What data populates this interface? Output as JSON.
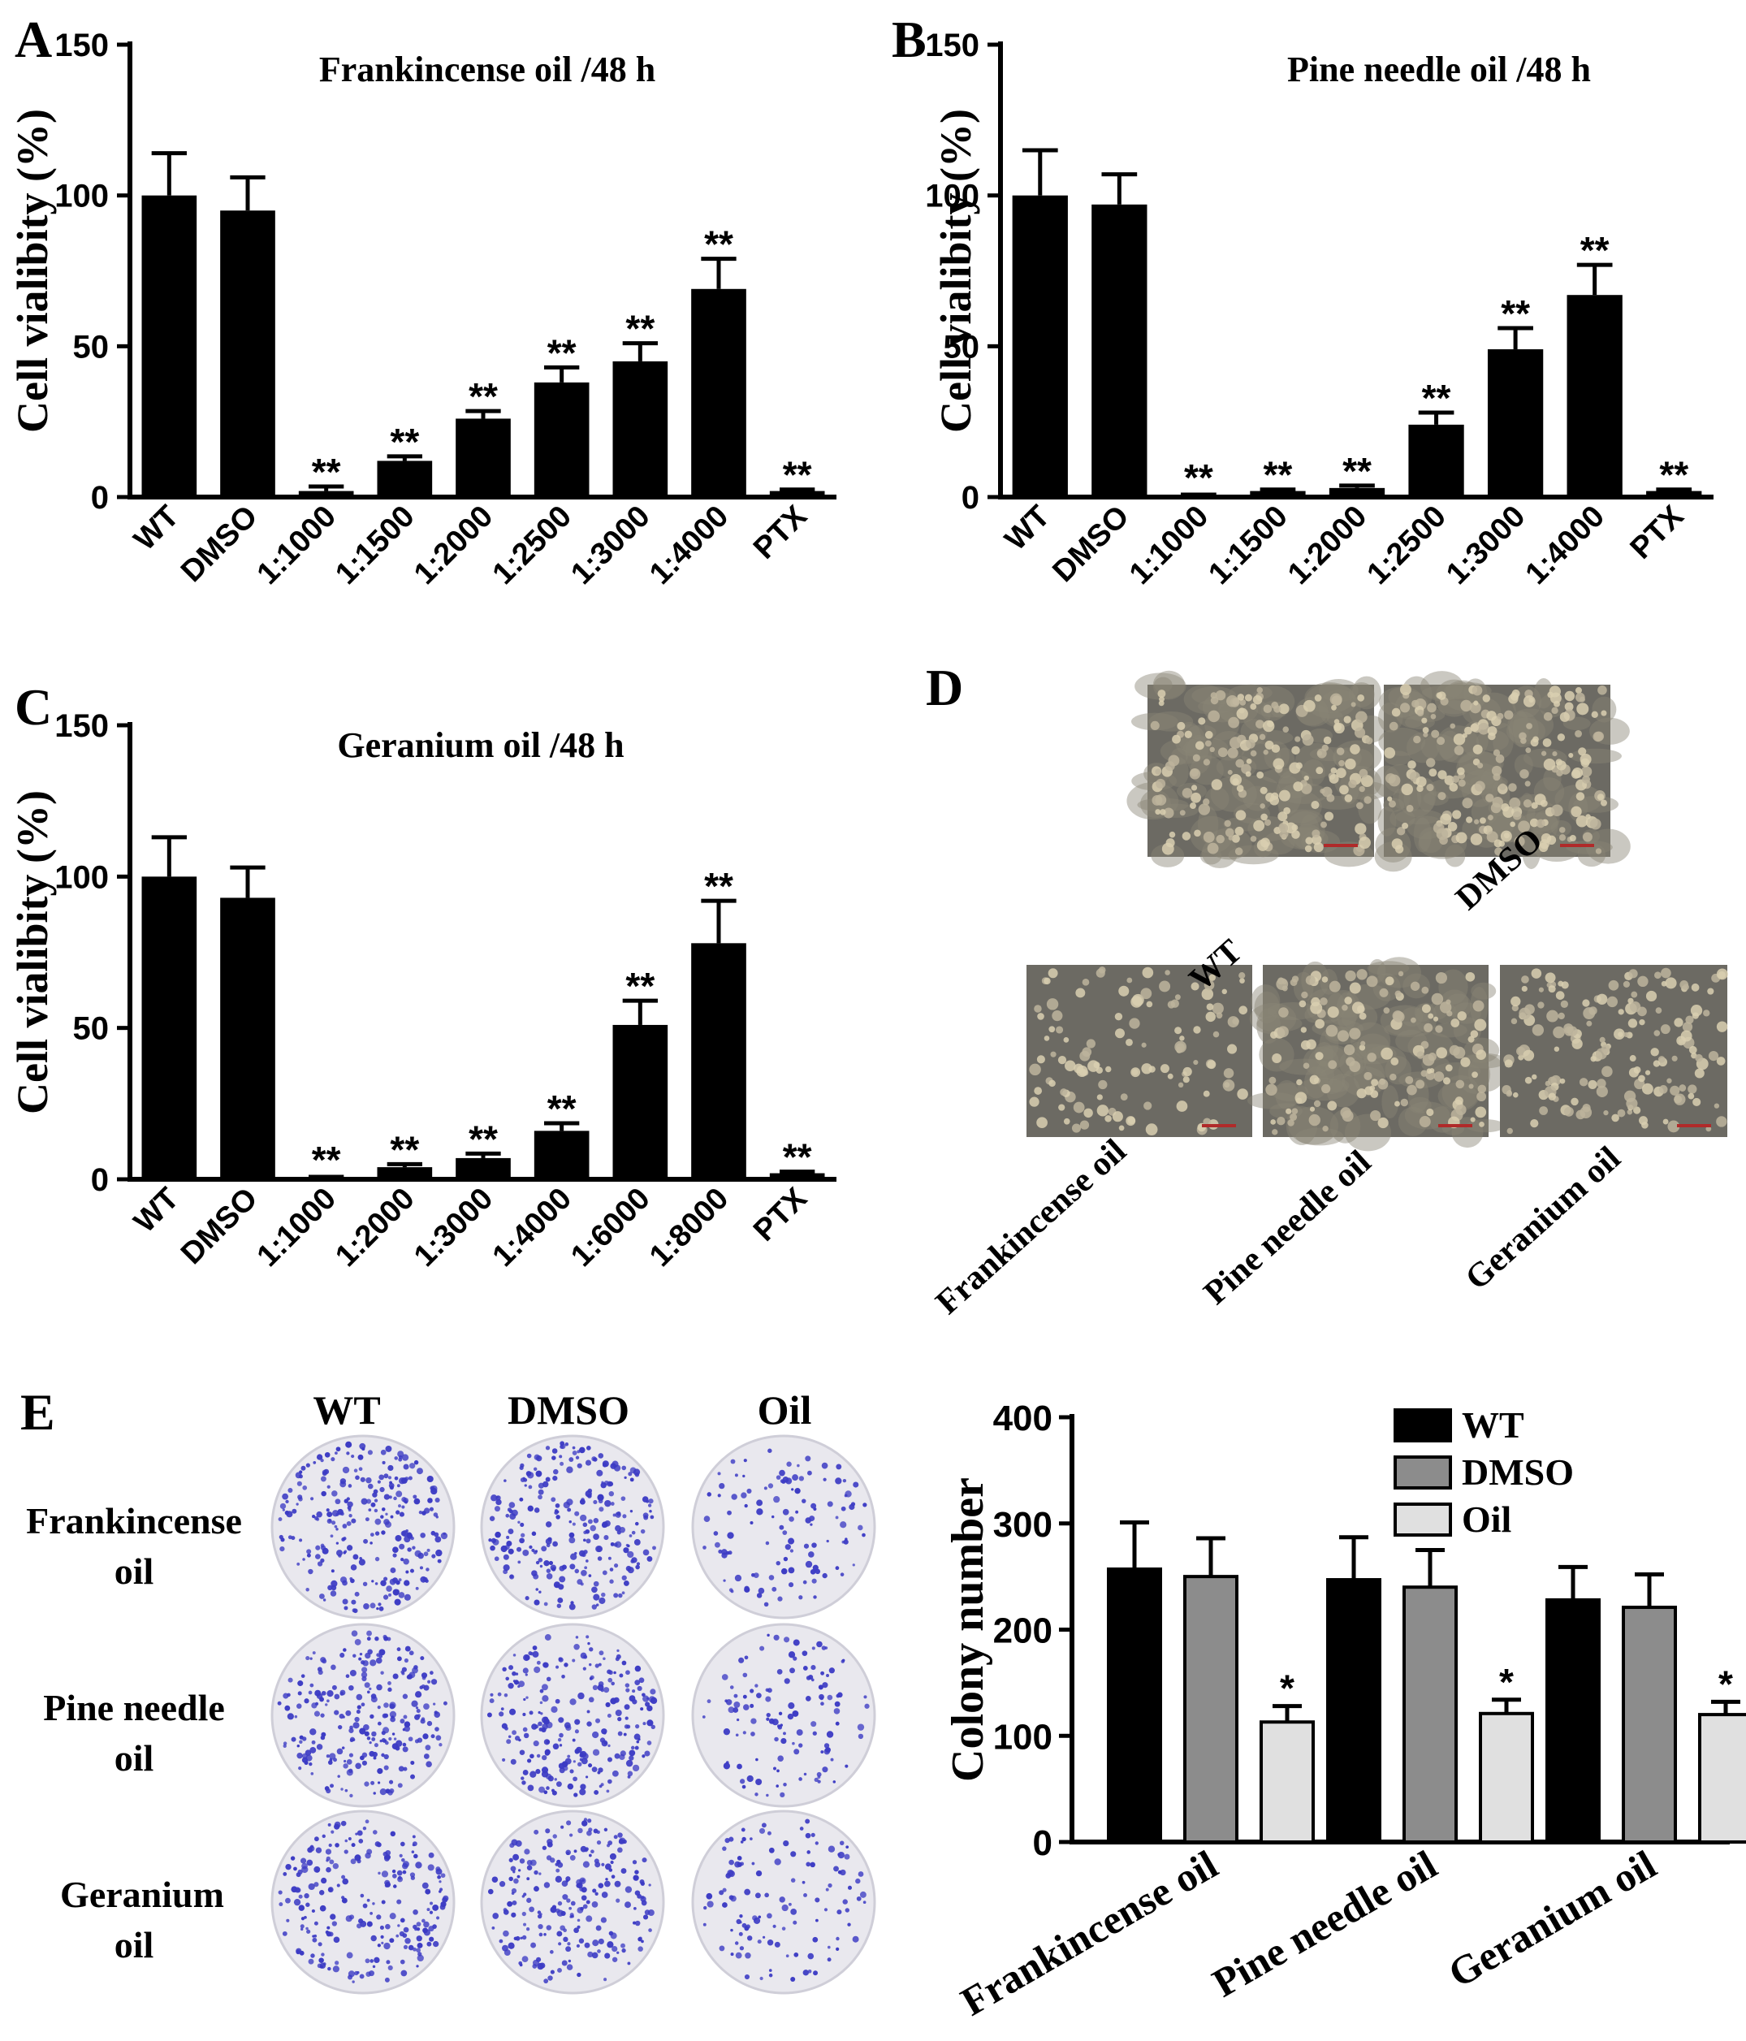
{
  "chart_data": [
    {
      "panel": "A",
      "type": "bar",
      "title": "Frankincense oil /48 h",
      "ylabel": "Cell vialibity (%)",
      "xlabel": "",
      "ylim": [
        0,
        150
      ],
      "yticks": [
        "0",
        "50",
        "100",
        "150"
      ],
      "grid": false,
      "categories": [
        "WT",
        "DMSO",
        "1:1000",
        "1:1500",
        "1:2000",
        "1:2500",
        "1:3000",
        "1:4000",
        "PTX"
      ],
      "values": [
        100,
        95,
        2,
        12,
        26,
        38,
        45,
        69,
        2
      ],
      "errors": [
        14,
        11,
        1.5,
        1.5,
        2.5,
        5,
        6,
        10,
        0.5
      ],
      "annotations": [
        "",
        "",
        "**",
        "**",
        "**",
        "**",
        "**",
        "**",
        "**"
      ],
      "bar_color": "#000000"
    },
    {
      "panel": "B",
      "type": "bar",
      "title": "Pine needle oil /48 h",
      "ylabel": "Cell vialibity (%)",
      "xlabel": "",
      "ylim": [
        0,
        150
      ],
      "yticks": [
        "0",
        "50",
        "100",
        "150"
      ],
      "grid": false,
      "categories": [
        "WT",
        "DMSO",
        "1:1000",
        "1:1500",
        "1:2000",
        "1:2500",
        "1:3000",
        "1:4000",
        "PTX"
      ],
      "values": [
        100,
        97,
        0.5,
        2,
        3,
        24,
        49,
        67,
        2
      ],
      "errors": [
        15,
        10,
        0.3,
        0.5,
        0.8,
        4,
        7,
        10,
        0.5
      ],
      "annotations": [
        "",
        "",
        "**",
        "**",
        "**",
        "**",
        "**",
        "**",
        "**"
      ],
      "bar_color": "#000000"
    },
    {
      "panel": "C",
      "type": "bar",
      "title": "Geranium oil /48 h",
      "ylabel": "Cell vialibity (%)",
      "xlabel": "",
      "ylim": [
        0,
        150
      ],
      "yticks": [
        "0",
        "50",
        "100",
        "150"
      ],
      "grid": false,
      "categories": [
        "WT",
        "DMSO",
        "1:1000",
        "1:2000",
        "1:3000",
        "1:4000",
        "1:6000",
        "1:8000",
        "PTX"
      ],
      "values": [
        100,
        93,
        0.5,
        4,
        7,
        16,
        51,
        78,
        2
      ],
      "errors": [
        13,
        10,
        0.3,
        1,
        1.5,
        2.5,
        8,
        14,
        0.5
      ],
      "annotations": [
        "",
        "",
        "**",
        "**",
        "**",
        "**",
        "**",
        "**",
        "**"
      ],
      "bar_color": "#000000"
    },
    {
      "panel": "E",
      "type": "bar",
      "title": "",
      "ylabel": "Colony number",
      "xlabel": "",
      "ylim": [
        0,
        400
      ],
      "yticks": [
        "0",
        "100",
        "200",
        "300",
        "400"
      ],
      "grid": false,
      "legend_position": "top-right",
      "categories": [
        "Frankincense oil",
        "Pine needle oil",
        "Geranium oil"
      ],
      "series": [
        {
          "name": "WT",
          "values": [
            257,
            247,
            228
          ],
          "errors": [
            44,
            40,
            31
          ],
          "color": "#000000"
        },
        {
          "name": "DMSO",
          "values": [
            250,
            240,
            221
          ],
          "errors": [
            36,
            35,
            31
          ],
          "color": "#8c8c8c"
        },
        {
          "name": "Oil",
          "values": [
            113,
            121,
            120
          ],
          "errors": [
            15,
            13,
            12
          ],
          "color": "#e0e0e0"
        }
      ],
      "annotations": {
        "Oil": [
          "*",
          "*",
          "*"
        ]
      }
    }
  ],
  "panel_labels": {
    "a": "A",
    "b": "B",
    "c": "C",
    "d": "D",
    "e": "E"
  },
  "panel_d": {
    "top_images": [
      "WT",
      "DMSO"
    ],
    "bottom_images": [
      "Frankincense oil",
      "Pine needle oil",
      "Geranium oil"
    ]
  },
  "panel_e_plates": {
    "columns": [
      "WT",
      "DMSO",
      "Oil"
    ],
    "rows": [
      {
        "line1": "Frankincense",
        "line2": "oil"
      },
      {
        "line1": "Pine needle",
        "line2": "oil"
      },
      {
        "line1": "Geranium",
        "line2": "oil"
      }
    ]
  },
  "colors": {
    "ink": "#000000",
    "micro_bg": "#6c6a63",
    "micro_cell": "#bdb49c",
    "micro_light": "#d9cfb0",
    "plate_bg": "#e9e8ee",
    "plate_rim": "#cfced8",
    "colony": "#3c3bc4",
    "scale_bar": "#b02a2a"
  }
}
